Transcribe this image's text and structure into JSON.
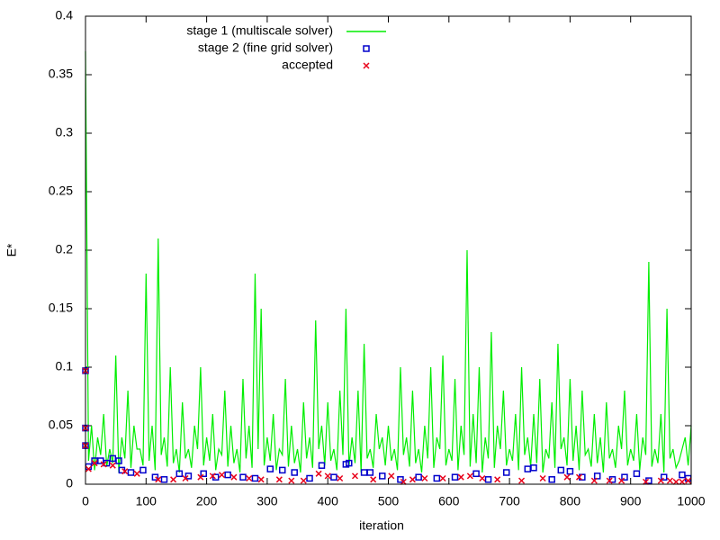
{
  "chart_data": {
    "type": "line",
    "xlabel": "iteration",
    "ylabel": "E*",
    "xlim": [
      0,
      1000
    ],
    "xticks": [
      0,
      100,
      200,
      300,
      400,
      500,
      600,
      700,
      800,
      900,
      1000
    ],
    "ylim": [
      0,
      0.4
    ],
    "yticks": [
      0,
      0.05,
      0.1,
      0.15,
      0.2,
      0.25,
      0.3,
      0.35,
      0.4
    ],
    "legend": "upper left",
    "series": [
      {
        "name": "stage 1 (multiscale solver)",
        "color": "#00ee00",
        "marker": "line",
        "x": [
          0,
          5,
          10,
          15,
          20,
          25,
          30,
          35,
          40,
          45,
          50,
          55,
          60,
          65,
          70,
          75,
          80,
          85,
          90,
          95,
          100,
          105,
          110,
          115,
          120,
          125,
          130,
          135,
          140,
          145,
          150,
          155,
          160,
          165,
          170,
          175,
          180,
          185,
          190,
          195,
          200,
          205,
          210,
          215,
          220,
          225,
          230,
          235,
          240,
          245,
          250,
          255,
          260,
          265,
          270,
          275,
          280,
          285,
          290,
          295,
          300,
          305,
          310,
          315,
          320,
          325,
          330,
          335,
          340,
          345,
          350,
          355,
          360,
          365,
          370,
          375,
          380,
          385,
          390,
          395,
          400,
          405,
          410,
          415,
          420,
          425,
          430,
          435,
          440,
          445,
          450,
          455,
          460,
          465,
          470,
          475,
          480,
          485,
          490,
          495,
          500,
          505,
          510,
          515,
          520,
          525,
          530,
          535,
          540,
          545,
          550,
          555,
          560,
          565,
          570,
          575,
          580,
          585,
          590,
          595,
          600,
          605,
          610,
          615,
          620,
          625,
          630,
          635,
          640,
          645,
          650,
          655,
          660,
          665,
          670,
          675,
          680,
          685,
          690,
          695,
          700,
          705,
          710,
          715,
          720,
          725,
          730,
          735,
          740,
          745,
          750,
          755,
          760,
          765,
          770,
          775,
          780,
          785,
          790,
          795,
          800,
          805,
          810,
          815,
          820,
          825,
          830,
          835,
          840,
          845,
          850,
          855,
          860,
          865,
          870,
          875,
          880,
          885,
          890,
          895,
          900,
          905,
          910,
          915,
          920,
          925,
          930,
          935,
          940,
          945,
          950,
          955,
          960,
          965,
          970,
          975,
          980,
          985,
          990,
          995,
          1000
        ],
        "values": [
          0.37,
          0.02,
          0.05,
          0.012,
          0.04,
          0.025,
          0.06,
          0.015,
          0.03,
          0.018,
          0.11,
          0.01,
          0.04,
          0.022,
          0.08,
          0.014,
          0.05,
          0.03,
          0.03,
          0.016,
          0.18,
          0.02,
          0.05,
          0.012,
          0.21,
          0.025,
          0.04,
          0.015,
          0.1,
          0.018,
          0.03,
          0.01,
          0.07,
          0.022,
          0.03,
          0.014,
          0.05,
          0.03,
          0.1,
          0.016,
          0.04,
          0.02,
          0.06,
          0.012,
          0.03,
          0.025,
          0.08,
          0.015,
          0.05,
          0.018,
          0.03,
          0.01,
          0.09,
          0.022,
          0.05,
          0.014,
          0.18,
          0.03,
          0.15,
          0.016,
          0.04,
          0.02,
          0.06,
          0.012,
          0.03,
          0.025,
          0.09,
          0.015,
          0.05,
          0.018,
          0.03,
          0.01,
          0.07,
          0.022,
          0.04,
          0.014,
          0.14,
          0.03,
          0.05,
          0.016,
          0.07,
          0.02,
          0.03,
          0.012,
          0.08,
          0.025,
          0.15,
          0.015,
          0.04,
          0.018,
          0.08,
          0.01,
          0.12,
          0.022,
          0.03,
          0.014,
          0.06,
          0.03,
          0.04,
          0.016,
          0.05,
          0.02,
          0.03,
          0.012,
          0.1,
          0.025,
          0.04,
          0.015,
          0.08,
          0.018,
          0.03,
          0.01,
          0.05,
          0.022,
          0.1,
          0.014,
          0.04,
          0.03,
          0.11,
          0.016,
          0.03,
          0.02,
          0.09,
          0.012,
          0.05,
          0.025,
          0.2,
          0.015,
          0.06,
          0.018,
          0.1,
          0.01,
          0.04,
          0.022,
          0.13,
          0.014,
          0.05,
          0.03,
          0.08,
          0.016,
          0.03,
          0.02,
          0.06,
          0.012,
          0.1,
          0.025,
          0.04,
          0.015,
          0.06,
          0.018,
          0.09,
          0.01,
          0.03,
          0.022,
          0.07,
          0.014,
          0.12,
          0.03,
          0.04,
          0.016,
          0.09,
          0.02,
          0.05,
          0.012,
          0.08,
          0.025,
          0.03,
          0.015,
          0.06,
          0.018,
          0.04,
          0.01,
          0.07,
          0.022,
          0.03,
          0.014,
          0.05,
          0.03,
          0.08,
          0.016,
          0.03,
          0.02,
          0.06,
          0.012,
          0.04,
          0.025,
          0.19,
          0.015,
          0.03,
          0.018,
          0.06,
          0.01,
          0.15,
          0.022,
          0.03,
          0.014,
          0.02,
          0.03,
          0.04,
          0.016,
          0.05
        ]
      },
      {
        "name": "stage 2 (fine grid solver)",
        "color": "#0000cc",
        "marker": "square",
        "x": [
          0,
          0,
          0,
          5,
          15,
          25,
          35,
          45,
          55,
          60,
          75,
          95,
          115,
          130,
          155,
          170,
          195,
          215,
          235,
          260,
          280,
          305,
          325,
          345,
          370,
          390,
          410,
          430,
          435,
          460,
          470,
          490,
          520,
          550,
          580,
          610,
          645,
          665,
          695,
          730,
          740,
          770,
          785,
          800,
          820,
          845,
          870,
          890,
          910,
          930,
          955,
          985,
          995
        ],
        "values": [
          0.097,
          0.048,
          0.033,
          0.015,
          0.02,
          0.02,
          0.018,
          0.022,
          0.02,
          0.012,
          0.01,
          0.012,
          0.006,
          0.004,
          0.009,
          0.007,
          0.009,
          0.006,
          0.008,
          0.006,
          0.005,
          0.013,
          0.012,
          0.01,
          0.005,
          0.016,
          0.006,
          0.017,
          0.018,
          0.01,
          0.01,
          0.007,
          0.004,
          0.006,
          0.005,
          0.006,
          0.009,
          0.004,
          0.01,
          0.013,
          0.014,
          0.004,
          0.012,
          0.011,
          0.006,
          0.007,
          0.004,
          0.006,
          0.009,
          0.003,
          0.006,
          0.008,
          0.005
        ]
      },
      {
        "name": "accepted",
        "color": "#e8001a",
        "marker": "cross",
        "x": [
          0,
          0,
          0,
          5,
          15,
          30,
          45,
          65,
          85,
          120,
          145,
          165,
          190,
          210,
          225,
          245,
          270,
          290,
          320,
          340,
          360,
          385,
          400,
          420,
          445,
          475,
          505,
          525,
          540,
          560,
          590,
          620,
          635,
          655,
          680,
          720,
          755,
          795,
          815,
          840,
          865,
          885,
          925,
          950,
          965,
          975,
          985,
          995
        ],
        "values": [
          0.097,
          0.048,
          0.033,
          0.013,
          0.018,
          0.017,
          0.016,
          0.011,
          0.009,
          0.004,
          0.004,
          0.005,
          0.006,
          0.007,
          0.008,
          0.006,
          0.005,
          0.004,
          0.004,
          0.003,
          0.003,
          0.009,
          0.007,
          0.005,
          0.007,
          0.004,
          0.007,
          0.002,
          0.004,
          0.005,
          0.005,
          0.006,
          0.007,
          0.005,
          0.004,
          0.003,
          0.005,
          0.006,
          0.006,
          0.003,
          0.003,
          0.003,
          0.002,
          0.003,
          0.003,
          0.002,
          0.002,
          0.003
        ]
      }
    ]
  }
}
